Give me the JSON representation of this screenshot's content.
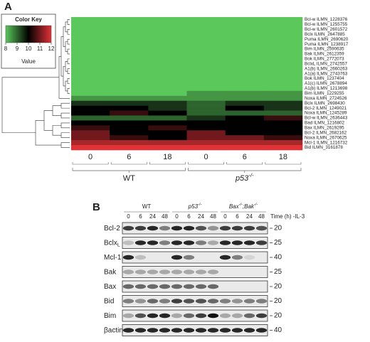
{
  "panel_a": {
    "label": "A",
    "color_key": {
      "title": "Color Key",
      "axis_label": "Value",
      "range": [
        8,
        12
      ],
      "ticks": [
        8,
        9,
        10,
        11,
        12
      ]
    },
    "rows": [
      "Bcl-w ILMN_1228376",
      "Bcl-w ILMN_1255755",
      "Bcl-w ILMN_2601572",
      "Bclx ILMN_2647885",
      "Puma ILMN_2690620",
      "Puma ILMN_1238917",
      "Bim ILMN_2590635",
      "Bak ILMN_2612359",
      "Bok ILMN_2772073",
      "BclxL ILMN_2742557",
      "A1(b) ILMN_2660263",
      "A1(a) ILMN_2743763",
      "Bok ILMN_1237404",
      "A1(c) ILMN_2678894",
      "A1(b) ILMN_1213698",
      "Bim ILMN_1229255",
      "Noxa ILMN_2724526",
      "Bclx ILMN_2698430",
      "Bcl-2 ILMN_1249021",
      "Noxa ILMN_1245289",
      "Bcl-w ILMN_2636443",
      "Bad ILMN_1216802",
      "Bax ILMN_2619295",
      "Bcl-2 ILMN_2682162",
      "Noxa ILMN_2670625",
      "Mcl-1 ILMN_1216732",
      "Bid ILMN_3161878"
    ],
    "genotypes": [
      {
        "label": [
          "WT"
        ],
        "times": [
          0,
          6,
          18
        ]
      },
      {
        "label": [
          "p53",
          "-/-"
        ],
        "times": [
          0,
          6,
          18
        ]
      }
    ],
    "values": [
      [
        8,
        8,
        8,
        8,
        8,
        8
      ],
      [
        8,
        8,
        8,
        8,
        8,
        8
      ],
      [
        8,
        8,
        8,
        8,
        8,
        8
      ],
      [
        8,
        8,
        8,
        8,
        8,
        8
      ],
      [
        8,
        8,
        8,
        8,
        8,
        8
      ],
      [
        8,
        8,
        8,
        8,
        8,
        8
      ],
      [
        8,
        8,
        8,
        8,
        8,
        8
      ],
      [
        8,
        8,
        8,
        8,
        8,
        8
      ],
      [
        8,
        8,
        8,
        8,
        8,
        8
      ],
      [
        8,
        8,
        8,
        8,
        8,
        8
      ],
      [
        8,
        8,
        8,
        8,
        8,
        8
      ],
      [
        8,
        8,
        8,
        8,
        8,
        8
      ],
      [
        8,
        8,
        8,
        8,
        8,
        8
      ],
      [
        8,
        8,
        8,
        8,
        8,
        8
      ],
      [
        8,
        8,
        8,
        8,
        8,
        8
      ],
      [
        8,
        8,
        8,
        8.5,
        8.5,
        8.5
      ],
      [
        8.5,
        8.5,
        8.5,
        8.5,
        8.5,
        8.5
      ],
      [
        9.5,
        9.5,
        9.5,
        9,
        9.5,
        9.5
      ],
      [
        10,
        10,
        9.5,
        9,
        10,
        9.5
      ],
      [
        10,
        10.5,
        10,
        9,
        9,
        9
      ],
      [
        9,
        9,
        9,
        9.5,
        10,
        10.5
      ],
      [
        10,
        10,
        10,
        10,
        10,
        10
      ],
      [
        10.5,
        10,
        10.5,
        10,
        10,
        10
      ],
      [
        11,
        10,
        10,
        11,
        10,
        10
      ],
      [
        11,
        10.5,
        10,
        11,
        11,
        10.5
      ],
      [
        11.5,
        11.5,
        11.5,
        11.5,
        11.5,
        11.5
      ],
      [
        12,
        12,
        12,
        12,
        12,
        12
      ]
    ]
  },
  "panel_b": {
    "label": "B",
    "time_label": "Time (h) -IL-3",
    "groups": [
      {
        "label": [
          "WT"
        ],
        "times": [
          0,
          6,
          24,
          48
        ]
      },
      {
        "label": [
          "p53",
          "-/-"
        ],
        "times": [
          0,
          6,
          24,
          48
        ]
      },
      {
        "label": [
          "Bax",
          "-/-",
          ";Bak",
          "-/-"
        ],
        "times": [
          0,
          6,
          24,
          48
        ]
      }
    ],
    "blots": [
      {
        "name": [
          "Bcl-2"
        ],
        "mw": 20,
        "intensity": [
          0.8,
          0.8,
          0.9,
          0.5,
          0.9,
          0.9,
          0.7,
          0.4,
          0.8,
          0.8,
          0.8,
          0.7
        ]
      },
      {
        "name": [
          "Bclx",
          "L"
        ],
        "mw": 25,
        "intensity": [
          0.2,
          0.9,
          0.9,
          0.5,
          0.9,
          0.9,
          0.5,
          0.3,
          0.9,
          0.9,
          0.9,
          0.8
        ]
      },
      {
        "name": [
          "Mcl-1"
        ],
        "mw": 40,
        "intensity": [
          0.9,
          0.2,
          0,
          0,
          0.9,
          0.5,
          0,
          0,
          0.9,
          0.5,
          0.1,
          0
        ]
      },
      {
        "name": [
          "Bak"
        ],
        "mw": 25,
        "intensity": [
          0.3,
          0.3,
          0.3,
          0.3,
          0.3,
          0.3,
          0.3,
          0.3,
          0,
          0,
          0,
          0
        ]
      },
      {
        "name": [
          "Bax"
        ],
        "mw": 20,
        "intensity": [
          0.6,
          0.6,
          0.6,
          0.6,
          0.6,
          0.6,
          0.6,
          0.6,
          0,
          0,
          0,
          0
        ]
      },
      {
        "name": [
          "Bid"
        ],
        "mw": 20,
        "intensity": [
          0.5,
          0.4,
          0.6,
          0.5,
          0.8,
          0.7,
          0.7,
          0.6,
          0.5,
          0.4,
          0.5,
          0.5
        ]
      },
      {
        "name": [
          "Bim"
        ],
        "mw": 20,
        "intensity": [
          0.3,
          0.7,
          0.9,
          0.9,
          0.3,
          0.6,
          0.8,
          1,
          0.3,
          0.3,
          0.6,
          0.8
        ]
      },
      {
        "name": [
          "βactin"
        ],
        "mw": 40,
        "intensity": [
          0.9,
          0.9,
          0.9,
          0.9,
          0.9,
          0.9,
          0.9,
          0.9,
          0.9,
          0.9,
          0.9,
          0.9
        ]
      }
    ]
  }
}
